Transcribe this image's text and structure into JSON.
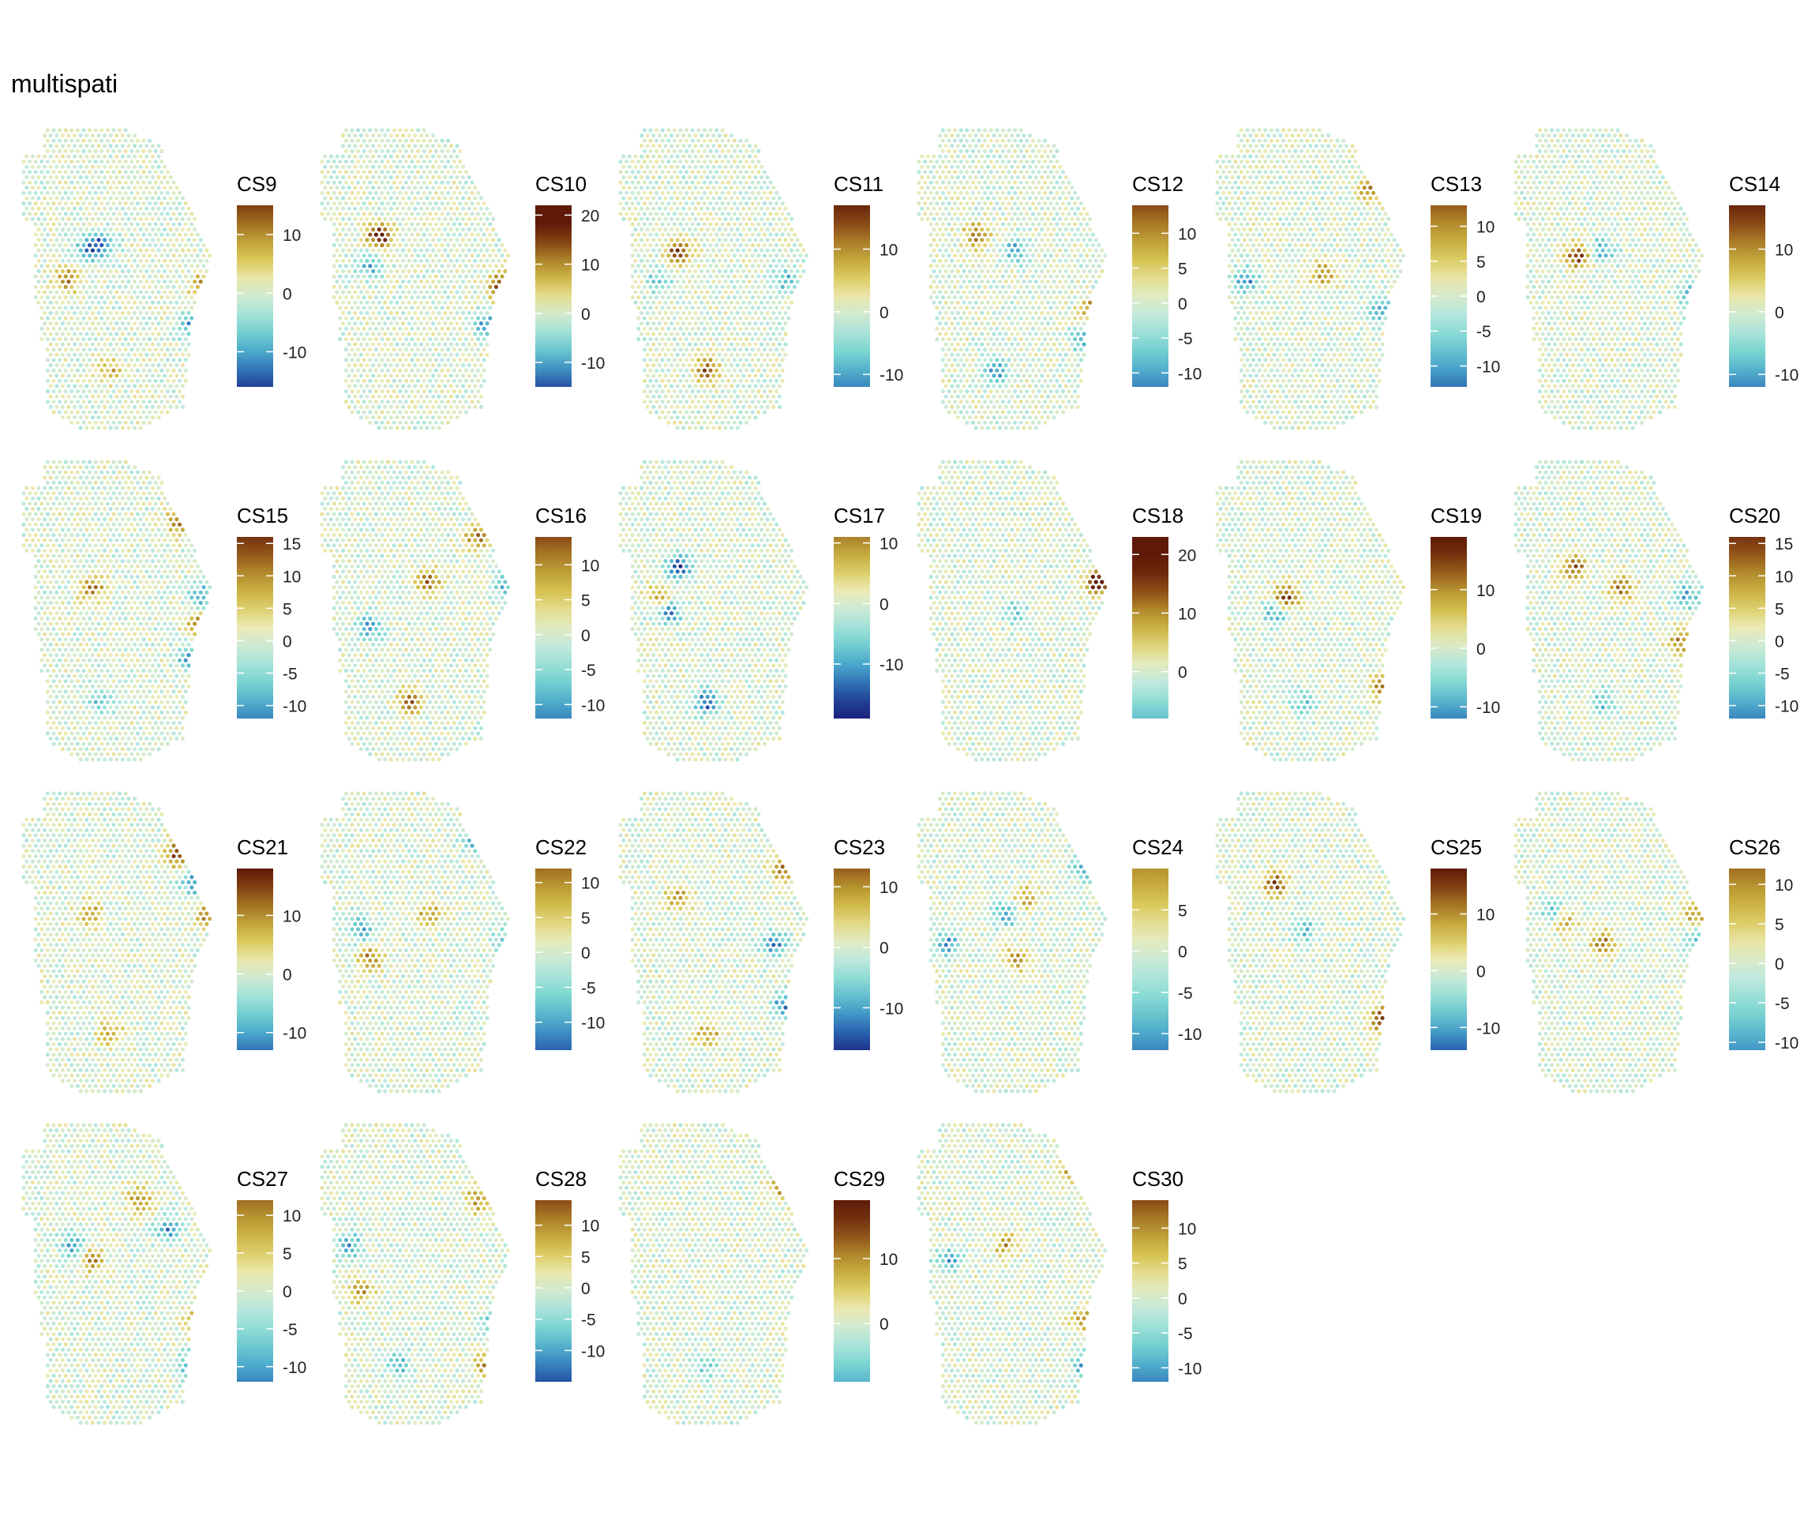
{
  "title": "multispati",
  "colors": {
    "gradient": [
      "#1a237e",
      "#2a62b0",
      "#4aa9cc",
      "#7fd8d1",
      "#bfe9df",
      "#ecebb7",
      "#d8c552",
      "#b6922e",
      "#8b4a16",
      "#5e1a07"
    ],
    "low": "#1a237e",
    "mid": "#e5f2cc",
    "high": "#5e1a07"
  },
  "chart_data": [
    {
      "type": "scatter",
      "subtype": "spatial-spot-map",
      "title": "CS9",
      "legend_ticks": [
        -10,
        0,
        10
      ],
      "legend_range": [
        -16,
        15
      ],
      "hotspots": [
        {
          "x": 0.4,
          "y": 0.38,
          "v": -14
        },
        {
          "x": 0.32,
          "y": 0.4,
          "v": -10
        },
        {
          "x": 0.22,
          "y": 0.5,
          "v": 12
        },
        {
          "x": 0.93,
          "y": 0.52,
          "v": 12
        },
        {
          "x": 0.86,
          "y": 0.65,
          "v": -11
        },
        {
          "x": 0.45,
          "y": 0.8,
          "v": 8
        }
      ]
    },
    {
      "type": "scatter",
      "subtype": "spatial-spot-map",
      "title": "CS10",
      "legend_ticks": [
        -10,
        0,
        10,
        20
      ],
      "legend_range": [
        -15,
        22
      ],
      "hotspots": [
        {
          "x": 0.3,
          "y": 0.35,
          "v": 20
        },
        {
          "x": 0.25,
          "y": 0.45,
          "v": -10
        },
        {
          "x": 0.93,
          "y": 0.52,
          "v": 18
        },
        {
          "x": 0.85,
          "y": 0.65,
          "v": -12
        }
      ]
    },
    {
      "type": "scatter",
      "subtype": "spatial-spot-map",
      "title": "CS11",
      "legend_ticks": [
        -10,
        0,
        10
      ],
      "legend_range": [
        -12,
        17
      ],
      "hotspots": [
        {
          "x": 0.3,
          "y": 0.4,
          "v": 15
        },
        {
          "x": 0.2,
          "y": 0.5,
          "v": -8
        },
        {
          "x": 0.85,
          "y": 0.5,
          "v": -9
        },
        {
          "x": 0.45,
          "y": 0.8,
          "v": 14
        }
      ]
    },
    {
      "type": "scatter",
      "subtype": "spatial-spot-map",
      "title": "CS12",
      "legend_ticks": [
        -10,
        -5,
        0,
        5,
        10
      ],
      "legend_range": [
        -12,
        14
      ],
      "hotspots": [
        {
          "x": 0.3,
          "y": 0.35,
          "v": 13
        },
        {
          "x": 0.5,
          "y": 0.4,
          "v": -10
        },
        {
          "x": 0.9,
          "y": 0.6,
          "v": 13
        },
        {
          "x": 0.85,
          "y": 0.7,
          "v": -10
        },
        {
          "x": 0.4,
          "y": 0.8,
          "v": -11
        }
      ]
    },
    {
      "type": "scatter",
      "subtype": "spatial-spot-map",
      "title": "CS13",
      "legend_ticks": [
        -10,
        -5,
        0,
        5,
        10
      ],
      "legend_range": [
        -13,
        13
      ],
      "hotspots": [
        {
          "x": 0.8,
          "y": 0.2,
          "v": 12
        },
        {
          "x": 0.15,
          "y": 0.5,
          "v": -12
        },
        {
          "x": 0.55,
          "y": 0.48,
          "v": 10
        },
        {
          "x": 0.85,
          "y": 0.6,
          "v": -9
        }
      ]
    },
    {
      "type": "scatter",
      "subtype": "spatial-spot-map",
      "title": "CS14",
      "legend_ticks": [
        -10,
        0,
        10
      ],
      "legend_range": [
        -12,
        17
      ],
      "hotspots": [
        {
          "x": 0.32,
          "y": 0.42,
          "v": 15
        },
        {
          "x": 0.45,
          "y": 0.4,
          "v": -10
        },
        {
          "x": 0.9,
          "y": 0.55,
          "v": -8
        }
      ]
    },
    {
      "type": "scatter",
      "subtype": "spatial-spot-map",
      "title": "CS15",
      "legend_ticks": [
        -10,
        -5,
        0,
        5,
        10,
        15
      ],
      "legend_range": [
        -12,
        16
      ],
      "hotspots": [
        {
          "x": 0.8,
          "y": 0.2,
          "v": 12
        },
        {
          "x": 0.35,
          "y": 0.42,
          "v": 12
        },
        {
          "x": 0.92,
          "y": 0.45,
          "v": -11
        },
        {
          "x": 0.9,
          "y": 0.55,
          "v": 13
        },
        {
          "x": 0.85,
          "y": 0.65,
          "v": -10
        },
        {
          "x": 0.4,
          "y": 0.8,
          "v": -8
        }
      ]
    },
    {
      "type": "scatter",
      "subtype": "spatial-spot-map",
      "title": "CS16",
      "legend_ticks": [
        -10,
        -5,
        0,
        5,
        10
      ],
      "legend_range": [
        -12,
        14
      ],
      "hotspots": [
        {
          "x": 0.8,
          "y": 0.25,
          "v": 11
        },
        {
          "x": 0.55,
          "y": 0.4,
          "v": 13
        },
        {
          "x": 0.25,
          "y": 0.55,
          "v": -11
        },
        {
          "x": 0.95,
          "y": 0.4,
          "v": -10
        },
        {
          "x": 0.45,
          "y": 0.8,
          "v": 12
        }
      ]
    },
    {
      "type": "scatter",
      "subtype": "spatial-spot-map",
      "title": "CS17",
      "legend_ticks": [
        -10,
        0,
        10
      ],
      "legend_range": [
        -19,
        11
      ],
      "hotspots": [
        {
          "x": 0.3,
          "y": 0.35,
          "v": -15
        },
        {
          "x": 0.2,
          "y": 0.45,
          "v": 9
        },
        {
          "x": 0.25,
          "y": 0.5,
          "v": -12
        },
        {
          "x": 0.45,
          "y": 0.8,
          "v": -15
        }
      ]
    },
    {
      "type": "scatter",
      "subtype": "spatial-spot-map",
      "title": "CS18",
      "legend_ticks": [
        0,
        10,
        20
      ],
      "legend_range": [
        -8,
        23
      ],
      "hotspots": [
        {
          "x": 0.93,
          "y": 0.4,
          "v": 22
        },
        {
          "x": 0.5,
          "y": 0.5,
          "v": -6
        }
      ]
    },
    {
      "type": "scatter",
      "subtype": "spatial-spot-map",
      "title": "CS19",
      "legend_ticks": [
        -10,
        0,
        10
      ],
      "legend_range": [
        -12,
        19
      ],
      "hotspots": [
        {
          "x": 0.35,
          "y": 0.45,
          "v": 17
        },
        {
          "x": 0.3,
          "y": 0.5,
          "v": -10
        },
        {
          "x": 0.85,
          "y": 0.75,
          "v": 14
        },
        {
          "x": 0.45,
          "y": 0.8,
          "v": -8
        }
      ]
    },
    {
      "type": "scatter",
      "subtype": "spatial-spot-map",
      "title": "CS20",
      "legend_ticks": [
        -10,
        -5,
        0,
        5,
        10,
        15
      ],
      "legend_range": [
        -12,
        16
      ],
      "hotspots": [
        {
          "x": 0.3,
          "y": 0.35,
          "v": 14
        },
        {
          "x": 0.55,
          "y": 0.42,
          "v": 11
        },
        {
          "x": 0.88,
          "y": 0.45,
          "v": -11
        },
        {
          "x": 0.85,
          "y": 0.6,
          "v": 10
        },
        {
          "x": 0.45,
          "y": 0.8,
          "v": -9
        }
      ]
    },
    {
      "type": "scatter",
      "subtype": "spatial-spot-map",
      "title": "CS21",
      "legend_ticks": [
        -10,
        0,
        10
      ],
      "legend_range": [
        -13,
        18
      ],
      "hotspots": [
        {
          "x": 0.8,
          "y": 0.2,
          "v": 16
        },
        {
          "x": 0.88,
          "y": 0.3,
          "v": -11
        },
        {
          "x": 0.35,
          "y": 0.4,
          "v": 10
        },
        {
          "x": 0.95,
          "y": 0.4,
          "v": 12
        },
        {
          "x": 0.45,
          "y": 0.8,
          "v": 8
        }
      ]
    },
    {
      "type": "scatter",
      "subtype": "spatial-spot-map",
      "title": "CS22",
      "legend_ticks": [
        -10,
        -5,
        0,
        5,
        10
      ],
      "legend_range": [
        -14,
        12
      ],
      "hotspots": [
        {
          "x": 0.8,
          "y": 0.15,
          "v": -12
        },
        {
          "x": 0.25,
          "y": 0.55,
          "v": 11
        },
        {
          "x": 0.2,
          "y": 0.45,
          "v": -11
        },
        {
          "x": 0.95,
          "y": 0.5,
          "v": -10
        },
        {
          "x": 0.55,
          "y": 0.4,
          "v": 9
        }
      ]
    },
    {
      "type": "scatter",
      "subtype": "spatial-spot-map",
      "title": "CS23",
      "legend_ticks": [
        -10,
        0,
        10
      ],
      "legend_range": [
        -17,
        13
      ],
      "hotspots": [
        {
          "x": 0.85,
          "y": 0.25,
          "v": 12
        },
        {
          "x": 0.3,
          "y": 0.35,
          "v": 11
        },
        {
          "x": 0.8,
          "y": 0.5,
          "v": -12
        },
        {
          "x": 0.85,
          "y": 0.7,
          "v": -13
        },
        {
          "x": 0.45,
          "y": 0.8,
          "v": 10
        }
      ]
    },
    {
      "type": "scatter",
      "subtype": "spatial-spot-map",
      "title": "CS24",
      "legend_ticks": [
        -10,
        -5,
        0,
        5
      ],
      "legend_range": [
        -12,
        10
      ],
      "hotspots": [
        {
          "x": 0.55,
          "y": 0.35,
          "v": 9
        },
        {
          "x": 0.45,
          "y": 0.4,
          "v": -11
        },
        {
          "x": 0.15,
          "y": 0.5,
          "v": -11
        },
        {
          "x": 0.5,
          "y": 0.55,
          "v": 9
        },
        {
          "x": 0.85,
          "y": 0.25,
          "v": -9
        }
      ]
    },
    {
      "type": "scatter",
      "subtype": "spatial-spot-map",
      "title": "CS25",
      "legend_ticks": [
        -10,
        0,
        10
      ],
      "legend_range": [
        -14,
        18
      ],
      "hotspots": [
        {
          "x": 0.3,
          "y": 0.3,
          "v": 14
        },
        {
          "x": 0.85,
          "y": 0.75,
          "v": 16
        },
        {
          "x": 0.45,
          "y": 0.45,
          "v": -8
        }
      ]
    },
    {
      "type": "scatter",
      "subtype": "spatial-spot-map",
      "title": "CS26",
      "legend_ticks": [
        -10,
        -5,
        0,
        5,
        10
      ],
      "legend_range": [
        -11,
        12
      ],
      "hotspots": [
        {
          "x": 0.25,
          "y": 0.42,
          "v": 11
        },
        {
          "x": 0.2,
          "y": 0.4,
          "v": -10
        },
        {
          "x": 0.45,
          "y": 0.5,
          "v": 11
        },
        {
          "x": 0.93,
          "y": 0.4,
          "v": 11
        },
        {
          "x": 0.95,
          "y": 0.5,
          "v": -10
        }
      ]
    },
    {
      "type": "scatter",
      "subtype": "spatial-spot-map",
      "title": "CS27",
      "legend_ticks": [
        -10,
        -5,
        0,
        5,
        10
      ],
      "legend_range": [
        -12,
        12
      ],
      "hotspots": [
        {
          "x": 0.6,
          "y": 0.25,
          "v": 11
        },
        {
          "x": 0.75,
          "y": 0.35,
          "v": -11
        },
        {
          "x": 0.25,
          "y": 0.4,
          "v": -10
        },
        {
          "x": 0.35,
          "y": 0.45,
          "v": 10
        },
        {
          "x": 0.9,
          "y": 0.65,
          "v": 12
        },
        {
          "x": 0.85,
          "y": 0.8,
          "v": -10
        }
      ]
    },
    {
      "type": "scatter",
      "subtype": "spatial-spot-map",
      "title": "CS28",
      "legend_ticks": [
        -10,
        -5,
        0,
        5,
        10
      ],
      "legend_range": [
        -15,
        14
      ],
      "hotspots": [
        {
          "x": 0.8,
          "y": 0.25,
          "v": 10
        },
        {
          "x": 0.15,
          "y": 0.4,
          "v": -10
        },
        {
          "x": 0.2,
          "y": 0.55,
          "v": 10
        },
        {
          "x": 0.9,
          "y": 0.65,
          "v": -11
        },
        {
          "x": 0.85,
          "y": 0.8,
          "v": 11
        },
        {
          "x": 0.4,
          "y": 0.8,
          "v": -9
        }
      ]
    },
    {
      "type": "scatter",
      "subtype": "spatial-spot-map",
      "title": "CS29",
      "legend_ticks": [
        0,
        10
      ],
      "legend_range": [
        -9,
        19
      ],
      "hotspots": [
        {
          "x": 0.85,
          "y": 0.2,
          "v": 17
        },
        {
          "x": 0.45,
          "y": 0.8,
          "v": -7
        }
      ]
    },
    {
      "type": "scatter",
      "subtype": "spatial-spot-map",
      "title": "CS30",
      "legend_ticks": [
        -10,
        -5,
        0,
        5,
        10
      ],
      "legend_range": [
        -12,
        14
      ],
      "hotspots": [
        {
          "x": 0.8,
          "y": 0.15,
          "v": 13
        },
        {
          "x": 0.15,
          "y": 0.45,
          "v": -10
        },
        {
          "x": 0.45,
          "y": 0.4,
          "v": 9
        },
        {
          "x": 0.85,
          "y": 0.65,
          "v": 10
        },
        {
          "x": 0.85,
          "y": 0.8,
          "v": -9
        }
      ]
    }
  ]
}
